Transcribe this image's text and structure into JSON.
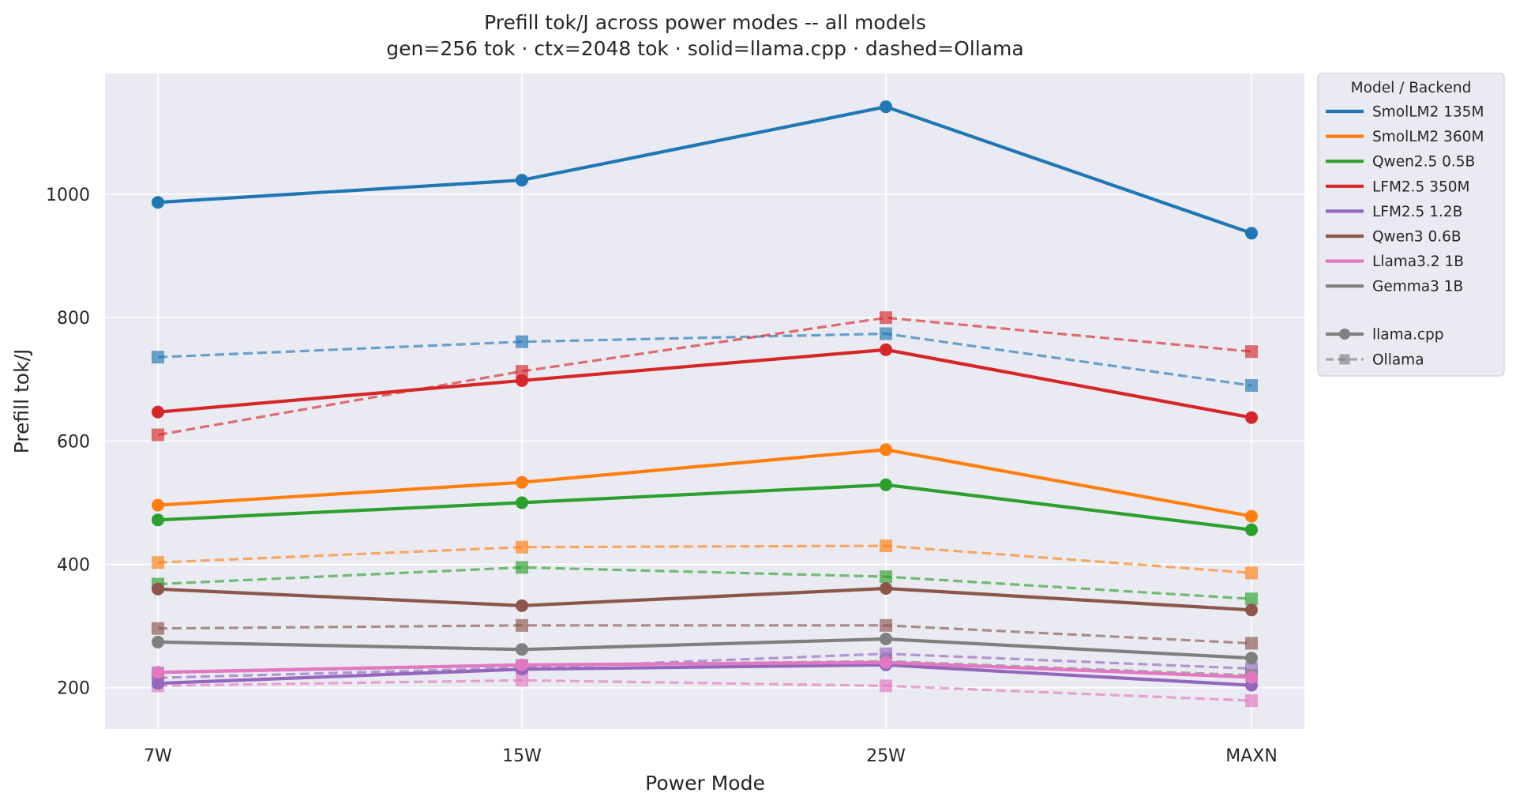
{
  "chart_data": {
    "type": "line",
    "title": "Prefill tok/J across power modes -- all models",
    "subtitle": "gen=256 tok · ctx=2048 tok · solid=llama.cpp · dashed=Ollama",
    "xlabel": "Power Mode",
    "ylabel": "Prefill tok/J",
    "categories": [
      "7W",
      "15W",
      "25W",
      "MAXN"
    ],
    "ylim": [
      133,
      1196
    ],
    "yticks": [
      200,
      400,
      600,
      800,
      1000
    ],
    "grid": true,
    "legend_position": "outside-right-top",
    "legend_title": "Model  /  Backend",
    "backend_legend": [
      {
        "label": "llama.cpp",
        "style": "solid",
        "marker": "circle"
      },
      {
        "label": "Ollama",
        "style": "dashed",
        "marker": "square"
      }
    ],
    "series": [
      {
        "model": "SmolLM2 135M",
        "color": "#1f77b4",
        "llama_cpp": [
          987,
          1023,
          1142,
          937
        ],
        "ollama": [
          736,
          761,
          774,
          690
        ]
      },
      {
        "model": "SmolLM2 360M",
        "color": "#ff7f0e",
        "llama_cpp": [
          496,
          533,
          586,
          478
        ],
        "ollama": [
          403,
          428,
          430,
          386
        ]
      },
      {
        "model": "Qwen2.5 0.5B",
        "color": "#2ca02c",
        "llama_cpp": [
          472,
          500,
          529,
          456
        ],
        "ollama": [
          368,
          395,
          380,
          344
        ]
      },
      {
        "model": "LFM2.5 350M",
        "color": "#d62728",
        "llama_cpp": [
          647,
          698,
          748,
          638
        ],
        "ollama": [
          610,
          713,
          800,
          745
        ]
      },
      {
        "model": "LFM2.5 1.2B",
        "color": "#9467bd",
        "llama_cpp": [
          207,
          230,
          237,
          204
        ],
        "ollama": [
          216,
          232,
          255,
          231
        ]
      },
      {
        "model": "Qwen3 0.6B",
        "color": "#8c564b",
        "llama_cpp": [
          360,
          333,
          361,
          326
        ],
        "ollama": [
          296,
          301,
          301,
          272
        ]
      },
      {
        "model": "Llama3.2 1B",
        "color": "#e377c2",
        "llama_cpp": [
          225,
          237,
          241,
          217
        ],
        "ollama": [
          203,
          212,
          203,
          179
        ]
      },
      {
        "model": "Gemma3 1B",
        "color": "#7f7f7f",
        "llama_cpp": [
          274,
          262,
          279,
          248
        ],
        "ollama": [
          224,
          236,
          243,
          220
        ]
      }
    ]
  }
}
